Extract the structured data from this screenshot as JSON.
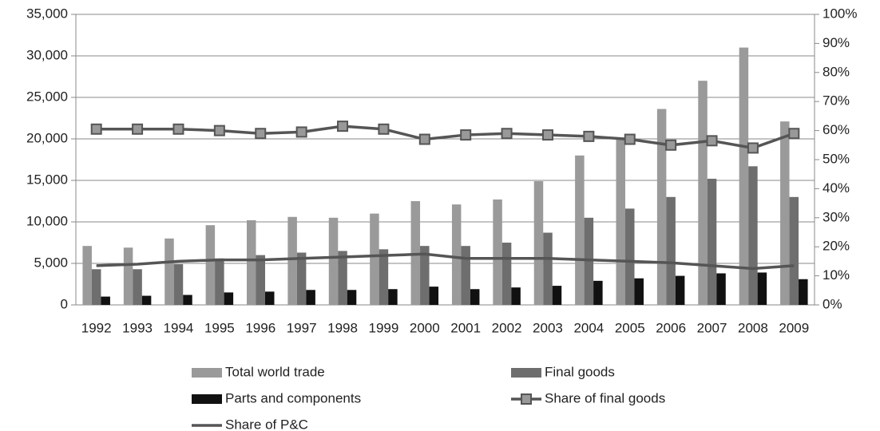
{
  "chart_data": {
    "type": "bar",
    "categories": [
      "1992",
      "1993",
      "1994",
      "1995",
      "1996",
      "1997",
      "1998",
      "1999",
      "2000",
      "2001",
      "2002",
      "2003",
      "2004",
      "2005",
      "2006",
      "2007",
      "2008",
      "2009"
    ],
    "series": [
      {
        "name": "Total world trade",
        "color": "#9a9a9a",
        "values": [
          7100,
          6900,
          8000,
          9600,
          10200,
          10600,
          10500,
          11000,
          12500,
          12100,
          12700,
          14900,
          18000,
          20000,
          23600,
          27000,
          31000,
          22100
        ]
      },
      {
        "name": "Final goods",
        "color": "#6e6e6e",
        "values": [
          4300,
          4300,
          4900,
          5600,
          6000,
          6300,
          6500,
          6700,
          7100,
          7100,
          7500,
          8700,
          10500,
          11600,
          13000,
          15200,
          16700,
          13000
        ]
      },
      {
        "name": "Parts and components",
        "color": "#111111",
        "values": [
          1000,
          1100,
          1200,
          1500,
          1600,
          1800,
          1800,
          1900,
          2200,
          1900,
          2100,
          2300,
          2900,
          3200,
          3500,
          3800,
          3900,
          3100
        ]
      },
      {
        "name": "Share of final goods",
        "color": "#555555",
        "type": "line",
        "marker": "square",
        "axis": "y2",
        "values": [
          60.5,
          60.5,
          60.5,
          60,
          59,
          59.5,
          61.5,
          60.5,
          57,
          58.5,
          59,
          58.5,
          58,
          57,
          55,
          56.5,
          54,
          59
        ]
      },
      {
        "name": "Share of P&C",
        "color": "#555555",
        "type": "line",
        "axis": "y2",
        "values": [
          13.5,
          14,
          15,
          15.5,
          15.5,
          16,
          16.5,
          17,
          17.5,
          16,
          16,
          16,
          15.5,
          15,
          14.5,
          13.5,
          12.5,
          13.5
        ]
      }
    ],
    "ylim": [
      0,
      35000
    ],
    "yticks": [
      0,
      {
        "value": 5000,
        "label": "5,000"
      },
      {
        "value": 10000,
        "label": "10,000"
      },
      {
        "value": 15000,
        "label": "15,000"
      },
      {
        "value": 20000,
        "label": "20,000"
      },
      {
        "value": 25000,
        "label": "25,000"
      },
      {
        "value": 30000,
        "label": "30,000"
      },
      {
        "value": 35000,
        "label": "35,000"
      }
    ],
    "y2lim": [
      0,
      100
    ],
    "y2ticks": [
      {
        "value": 0,
        "label": "0%"
      },
      {
        "value": 10,
        "label": "10%"
      },
      {
        "value": 20,
        "label": "20%"
      },
      {
        "value": 30,
        "label": "30%"
      },
      {
        "value": 40,
        "label": "40%"
      },
      {
        "value": 50,
        "label": "50%"
      },
      {
        "value": 60,
        "label": "60%"
      },
      {
        "value": 70,
        "label": "70%"
      },
      {
        "value": 80,
        "label": "80%"
      },
      {
        "value": 90,
        "label": "90%"
      },
      {
        "value": 100,
        "label": "100%"
      }
    ],
    "grid": true,
    "legend": "bottom"
  }
}
